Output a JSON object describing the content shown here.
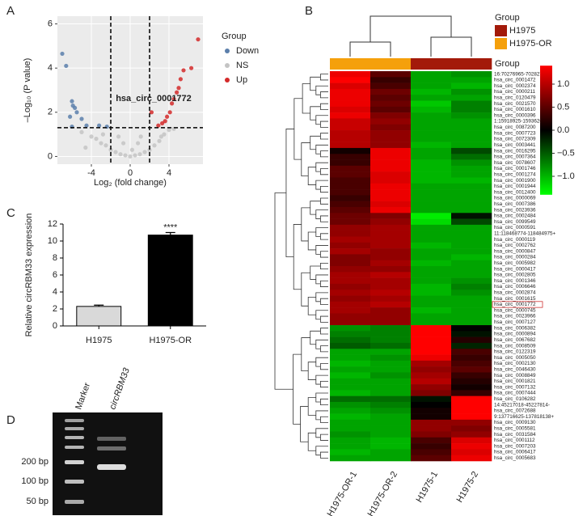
{
  "chart_data": [
    {
      "type": "scatter",
      "panel_label": "A",
      "x_label": "Log₂ (fold change)",
      "y_label": "–Log₁₀ (P value)",
      "xlim": [
        -7.5,
        7.5
      ],
      "xticks": [
        -4,
        0,
        4
      ],
      "ylim": [
        -0.35,
        6.35
      ],
      "yticks": [
        0,
        2,
        4,
        6
      ],
      "grid": true,
      "thresholds": {
        "x": [
          -2,
          2
        ],
        "y": 1.3
      },
      "legend_title": "Group",
      "annotation": "hsa_circ_0001772",
      "series": [
        {
          "name": "Down",
          "color": "#5b7fab",
          "x": [
            -7,
            -6.6,
            -6,
            -5.9,
            -5.7,
            -5.5,
            -6.2,
            -5,
            -4.5,
            -6,
            -3.2,
            -2.4
          ],
          "values": [
            4.65,
            4.1,
            2.5,
            2.3,
            2.2,
            2.0,
            1.8,
            1.7,
            1.4,
            1.35,
            1.4,
            1.35
          ]
        },
        {
          "name": "NS",
          "color": "#c4c4c4",
          "x": [
            -4,
            -3,
            -2,
            -1,
            0,
            1,
            2,
            3,
            3.5,
            4,
            -5,
            -3.5,
            -2.5,
            -1.5,
            -0.5,
            0.5,
            1.5,
            2.5,
            3.2,
            4.5,
            -1.2,
            -0.7,
            0.8,
            1.1,
            -4.6,
            -2.8,
            0.2
          ],
          "values": [
            0.9,
            0.6,
            0.3,
            0.1,
            0,
            0.1,
            0.3,
            0.7,
            1,
            1.2,
            1.1,
            0.8,
            0.5,
            0.2,
            0.05,
            0.05,
            0.2,
            0.5,
            0.9,
            1.25,
            0.9,
            0.6,
            0.6,
            0.9,
            0.4,
            1.0,
            0.3
          ]
        },
        {
          "name": "Up",
          "color": "#d42a2a",
          "x": [
            7,
            6.3,
            5.5,
            5.2,
            5,
            4.8,
            4.5,
            4.3,
            4.1,
            3.8,
            3.6,
            3.3,
            2.9,
            2.2
          ],
          "values": [
            5.3,
            4.0,
            3.9,
            3.5,
            3.1,
            2.9,
            2.6,
            2.4,
            2.0,
            1.8,
            1.6,
            1.5,
            1.4,
            2.0
          ]
        }
      ]
    },
    {
      "type": "heatmap",
      "panel_label": "B",
      "legend_title": "Group",
      "annotation_label": "Group",
      "groups": [
        {
          "name": "H1975",
          "color": "#a31a0a"
        },
        {
          "name": "H1975-OR",
          "color": "#f5a00b"
        }
      ],
      "columns": [
        "H1975-OR-1",
        "H1975-OR-2",
        "H1975-1",
        "H1975-2"
      ],
      "column_groups": [
        "H1975-OR",
        "H1975-OR",
        "H1975",
        "H1975"
      ],
      "clim": [
        -1.4,
        1.4
      ],
      "cticks": [
        {
          "value": 1,
          "label": "1.0"
        },
        {
          "value": 0.5,
          "label": "0.5"
        },
        {
          "value": 0,
          "label": "0.0"
        },
        {
          "value": -0.5,
          "label": "−0.5"
        },
        {
          "value": -1,
          "label": "−1.0"
        }
      ],
      "rows": [
        "16:70276965-70282784-",
        "hsa_circ_0001472",
        "hsa_circ_0002374",
        "hsa_circ_0000211",
        "hsa_circ_0120479",
        "hsa_circ_0021570",
        "hsa_circ_0001610",
        "hsa_circ_0000396",
        "1:15918925-15936266+",
        "hsa_circ_0087200",
        "hsa_circ_0007723",
        "hsa_circ_0072309",
        "hsa_circ_0003441",
        "hsa_circ_0016295",
        "hsa_circ_0007364",
        "hsa_circ_0078607",
        "hsa_circ_0001746",
        "hsa_circ_0001274",
        "hsa_circ_0001900",
        "hsa_circ_0001944",
        "hsa_circ_0012400",
        "hsa_circ_0000069",
        "hsa_circ_0007386",
        "hsa_circ_0023936",
        "hsa_circ_0002484",
        "hsa_circ_0099549",
        "hsa_circ_0000591",
        "11:118468774-118484975+",
        "hsa_circ_0000119",
        "hsa_circ_0002762",
        "hsa_circ_0000847",
        "hsa_circ_0000284",
        "hsa_circ_0005982",
        "hsa_circ_0000417",
        "hsa_circ_0002805",
        "hsa_circ_0001346",
        "hsa_circ_0006646",
        "hsa_circ_0002874",
        "hsa_circ_0001615",
        "hsa_circ_0001772",
        "hsa_circ_0000745",
        "hsa_circ_0023966",
        "hsa_circ_0007127",
        "hsa_circ_0006382",
        "hsa_circ_0000894",
        "hsa_circ_0067682",
        "hsa_circ_0008509",
        "hsa_circ_0122319",
        "hsa_circ_0005050",
        "hsa_circ_0002130",
        "hsa_circ_0046430",
        "hsa_circ_0008849",
        "hsa_circ_0001821",
        "hsa_circ_0007132",
        "hsa_circ_0007444",
        "hsa_circ_0106282",
        "14:45217018-45227814-",
        "hsa_circ_0072688",
        "9:137716625-137818138+",
        "hsa_circ_0009130",
        "hsa_circ_0005581",
        "hsa_circ_0031584",
        "hsa_circ_0001112",
        "hsa_circ_0007203",
        "hsa_circ_0006417",
        "hsa_circ_0005683"
      ],
      "values": [
        [
          1.3,
          0.5,
          -0.9,
          -0.8
        ],
        [
          1.4,
          0.3,
          -0.9,
          -0.9
        ],
        [
          1.2,
          0.4,
          -0.9,
          -1.0
        ],
        [
          1.3,
          0.6,
          -1.0,
          -0.8
        ],
        [
          1.3,
          0.5,
          -0.9,
          -0.9
        ],
        [
          1.3,
          0.6,
          -1.1,
          -0.7
        ],
        [
          1.2,
          0.5,
          -1.0,
          -0.7
        ],
        [
          1.3,
          0.7,
          -0.9,
          -0.8
        ],
        [
          1.1,
          0.8,
          -0.9,
          -0.9
        ],
        [
          1.1,
          0.7,
          -0.9,
          -0.9
        ],
        [
          1.0,
          0.8,
          -0.9,
          -0.9
        ],
        [
          1.0,
          0.8,
          -0.9,
          -0.9
        ],
        [
          1.0,
          0.8,
          -1.0,
          -0.9
        ],
        [
          0.1,
          1.3,
          -0.9,
          -0.4
        ],
        [
          0.3,
          1.3,
          -0.9,
          -0.6
        ],
        [
          0.3,
          1.3,
          -1.0,
          -0.8
        ],
        [
          0.5,
          1.3,
          -1.0,
          -0.9
        ],
        [
          0.5,
          1.2,
          -1.0,
          -0.9
        ],
        [
          0.4,
          1.2,
          -1.0,
          -1.0
        ],
        [
          0.4,
          1.3,
          -0.9,
          -0.9
        ],
        [
          0.4,
          1.3,
          -0.9,
          -0.9
        ],
        [
          0.3,
          1.3,
          -0.9,
          -0.9
        ],
        [
          0.4,
          1.2,
          -0.9,
          -0.9
        ],
        [
          0.5,
          1.3,
          -0.9,
          -0.9
        ],
        [
          0.6,
          0.7,
          -1.3,
          -0.1
        ],
        [
          0.6,
          0.8,
          -1.2,
          -0.4
        ],
        [
          0.8,
          0.9,
          -0.9,
          -0.9
        ],
        [
          0.8,
          0.9,
          -0.9,
          -0.9
        ],
        [
          0.9,
          0.9,
          -0.9,
          -0.9
        ],
        [
          0.8,
          0.9,
          -1.0,
          -0.9
        ],
        [
          0.9,
          0.8,
          -0.9,
          -0.9
        ],
        [
          0.7,
          0.8,
          -0.9,
          -1.0
        ],
        [
          0.7,
          0.9,
          -1.0,
          -0.9
        ],
        [
          0.8,
          0.8,
          -0.9,
          -0.9
        ],
        [
          0.9,
          1.0,
          -0.9,
          -0.9
        ],
        [
          0.9,
          0.9,
          -0.9,
          -0.8
        ],
        [
          0.8,
          0.9,
          -1.0,
          -0.7
        ],
        [
          0.9,
          1.0,
          -1.0,
          -0.8
        ],
        [
          0.8,
          0.9,
          -0.9,
          -0.9
        ],
        [
          0.9,
          1.0,
          -0.9,
          -0.9
        ],
        [
          0.9,
          0.8,
          -1.0,
          -0.9
        ],
        [
          0.8,
          0.8,
          -0.9,
          -0.9
        ],
        [
          0.8,
          0.8,
          -0.9,
          -0.9
        ],
        [
          -0.8,
          -0.7,
          1.4,
          0.0
        ],
        [
          -0.7,
          -0.7,
          1.4,
          -0.1
        ],
        [
          -0.6,
          -0.7,
          1.4,
          0.2
        ],
        [
          -0.5,
          -0.6,
          1.4,
          -0.2
        ],
        [
          -0.9,
          -0.9,
          1.4,
          0.4
        ],
        [
          -0.9,
          -0.8,
          1.3,
          0.3
        ],
        [
          -1.0,
          -0.9,
          0.9,
          0.4
        ],
        [
          -0.9,
          -0.9,
          0.8,
          0.5
        ],
        [
          -1.0,
          -0.8,
          0.9,
          0.3
        ],
        [
          -0.9,
          -0.9,
          1.0,
          0.2
        ],
        [
          -0.9,
          -0.9,
          0.8,
          0.1
        ],
        [
          -1.0,
          -0.9,
          0.7,
          0.3
        ],
        [
          -0.6,
          -0.6,
          -0.1,
          1.4
        ],
        [
          -0.8,
          -0.7,
          0.0,
          1.4
        ],
        [
          -0.9,
          -0.8,
          0.1,
          1.4
        ],
        [
          -1.0,
          -0.9,
          0.1,
          1.4
        ],
        [
          -0.9,
          -0.9,
          0.8,
          0.8
        ],
        [
          -0.9,
          -0.9,
          0.8,
          0.7
        ],
        [
          -0.8,
          -0.9,
          0.7,
          0.8
        ],
        [
          -0.9,
          -1.0,
          0.4,
          1.2
        ],
        [
          -0.9,
          -1.0,
          0.3,
          1.3
        ],
        [
          -1.0,
          -0.9,
          0.4,
          1.2
        ],
        [
          -0.9,
          -0.9,
          0.5,
          1.3
        ]
      ]
    },
    {
      "type": "bar",
      "panel_label": "C",
      "y_label": "Relative circRBM33 expression",
      "categories": [
        "H1975",
        "H1975-OR"
      ],
      "values": [
        2.3,
        10.7
      ],
      "errors": [
        0.15,
        0.3
      ],
      "colors": [
        "#d9d9d9",
        "#000000"
      ],
      "ylim": [
        0,
        12
      ],
      "yticks": [
        0,
        2,
        4,
        6,
        8,
        10,
        12
      ],
      "significance": "****"
    }
  ],
  "gel": {
    "panel_label": "D",
    "lanes": [
      "Marker",
      "circRBM33"
    ],
    "ladder": [
      "200 bp",
      "100 bp",
      "50 bp"
    ]
  }
}
